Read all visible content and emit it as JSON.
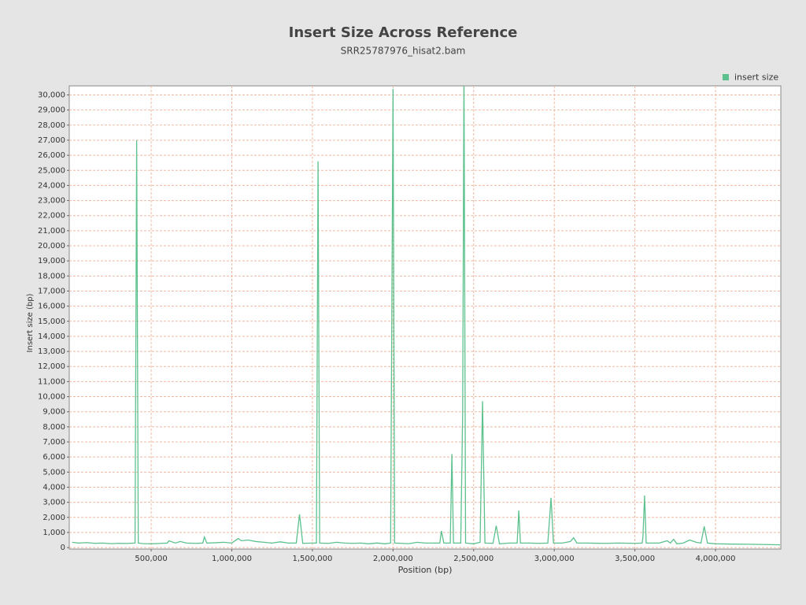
{
  "chart_data": {
    "type": "line",
    "title": "Insert Size Across Reference",
    "subtitle": "SRR25787976_hisat2.bam",
    "x_label": "Position (bp)",
    "y_label": "Insert size (bp)",
    "legend": "top-right",
    "grid": true,
    "x": [
      10000,
      50000,
      100000,
      150000,
      200000,
      250000,
      300000,
      350000,
      400000,
      410000,
      420000,
      450000,
      500000,
      550000,
      600000,
      610000,
      650000,
      680000,
      720000,
      780000,
      820000,
      830000,
      845000,
      900000,
      950000,
      1000000,
      1040000,
      1060000,
      1100000,
      1150000,
      1200000,
      1250000,
      1300000,
      1350000,
      1400000,
      1420000,
      1440000,
      1500000,
      1525000,
      1535000,
      1545000,
      1600000,
      1650000,
      1700000,
      1750000,
      1800000,
      1850000,
      1900000,
      1950000,
      1985000,
      2000000,
      2010000,
      2050000,
      2100000,
      2150000,
      2200000,
      2250000,
      2290000,
      2300000,
      2315000,
      2355000,
      2365000,
      2375000,
      2420000,
      2432000,
      2440000,
      2450000,
      2500000,
      2540000,
      2555000,
      2570000,
      2620000,
      2640000,
      2660000,
      2720000,
      2770000,
      2780000,
      2790000,
      2850000,
      2900000,
      2960000,
      2980000,
      2995000,
      3050000,
      3100000,
      3120000,
      3140000,
      3200000,
      3300000,
      3400000,
      3500000,
      3545000,
      3550000,
      3560000,
      3570000,
      3650000,
      3700000,
      3720000,
      3740000,
      3760000,
      3800000,
      3840000,
      3880000,
      3910000,
      3930000,
      3950000,
      4000000,
      4100000,
      4200000,
      4300000,
      4400000
    ],
    "series": [
      {
        "name": "insert size",
        "color": "#5cc18e",
        "values": [
          350,
          300,
          330,
          280,
          300,
          260,
          280,
          270,
          300,
          27000,
          300,
          260,
          250,
          270,
          300,
          450,
          300,
          400,
          300,
          280,
          300,
          700,
          300,
          320,
          350,
          300,
          600,
          450,
          500,
          400,
          350,
          300,
          380,
          300,
          300,
          2200,
          280,
          300,
          300,
          25600,
          300,
          280,
          350,
          300,
          280,
          300,
          250,
          300,
          250,
          300,
          30400,
          300,
          280,
          260,
          350,
          300,
          300,
          300,
          1100,
          300,
          300,
          6200,
          300,
          300,
          9000,
          31500,
          300,
          250,
          350,
          9700,
          300,
          280,
          1450,
          250,
          300,
          300,
          2450,
          300,
          300,
          280,
          300,
          3300,
          300,
          300,
          400,
          650,
          300,
          300,
          280,
          300,
          280,
          300,
          700,
          3450,
          300,
          300,
          450,
          300,
          550,
          250,
          300,
          500,
          350,
          300,
          1400,
          300,
          250,
          230,
          220,
          200,
          180
        ]
      }
    ],
    "xlim": [
      -8000,
      4405000
    ],
    "ylim": [
      -100,
      30600
    ],
    "xticks": [
      {
        "value": 500000,
        "label": "500,000"
      },
      {
        "value": 1000000,
        "label": "1,000,000"
      },
      {
        "value": 1500000,
        "label": "1,500,000"
      },
      {
        "value": 2000000,
        "label": "2,000,000"
      },
      {
        "value": 2500000,
        "label": "2,500,000"
      },
      {
        "value": 3000000,
        "label": "3,000,000"
      },
      {
        "value": 3500000,
        "label": "3,500,000"
      },
      {
        "value": 4000000,
        "label": "4,000,000"
      }
    ],
    "yticks": [
      0,
      {
        "value": 1000,
        "label": "1,000"
      },
      {
        "value": 2000,
        "label": "2,000"
      },
      {
        "value": 3000,
        "label": "3,000"
      },
      {
        "value": 4000,
        "label": "4,000"
      },
      {
        "value": 5000,
        "label": "5,000"
      },
      {
        "value": 6000,
        "label": "6,000"
      },
      {
        "value": 7000,
        "label": "7,000"
      },
      {
        "value": 8000,
        "label": "8,000"
      },
      {
        "value": 9000,
        "label": "9,000"
      },
      {
        "value": 10000,
        "label": "10,000"
      },
      {
        "value": 11000,
        "label": "11,000"
      },
      {
        "value": 12000,
        "label": "12,000"
      },
      {
        "value": 13000,
        "label": "13,000"
      },
      {
        "value": 14000,
        "label": "14,000"
      },
      {
        "value": 15000,
        "label": "15,000"
      },
      {
        "value": 16000,
        "label": "16,000"
      },
      {
        "value": 17000,
        "label": "17,000"
      },
      {
        "value": 18000,
        "label": "18,000"
      },
      {
        "value": 19000,
        "label": "19,000"
      },
      {
        "value": 20000,
        "label": "20,000"
      },
      {
        "value": 21000,
        "label": "21,000"
      },
      {
        "value": 22000,
        "label": "22,000"
      },
      {
        "value": 23000,
        "label": "23,000"
      },
      {
        "value": 24000,
        "label": "24,000"
      },
      {
        "value": 25000,
        "label": "25,000"
      },
      {
        "value": 26000,
        "label": "26,000"
      },
      {
        "value": 27000,
        "label": "27,000"
      },
      {
        "value": 28000,
        "label": "28,000"
      },
      {
        "value": 29000,
        "label": "29,000"
      },
      {
        "value": 30000,
        "label": "30,000"
      }
    ]
  }
}
